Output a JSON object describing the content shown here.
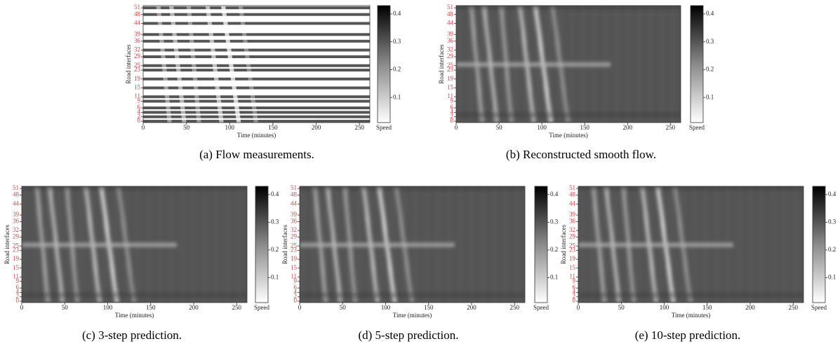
{
  "chart_data": [
    {
      "type": "heatmap",
      "variant": "measurements",
      "caption": "(a) Flow measurements.",
      "xlabel": "Time (minutes)",
      "ylabel": "Road interfaces",
      "xlim": [
        0,
        262
      ],
      "xticks": [
        0,
        50,
        100,
        150,
        200,
        250
      ],
      "ylim": [
        -0.6,
        52
      ],
      "yticks": [
        0,
        2,
        4,
        6,
        9,
        11,
        15,
        19,
        23,
        25,
        29,
        32,
        36,
        39,
        44,
        48,
        51
      ],
      "ytick_color": "#d04848",
      "colorbar": {
        "label": "Speed",
        "lim": [
          0.01,
          0.43
        ],
        "ticks": [
          0.1,
          0.2,
          0.3,
          0.4
        ]
      }
    },
    {
      "type": "heatmap",
      "variant": "smooth",
      "caption": "(b) Reconstructed smooth flow.",
      "xlabel": "Time (minutes)",
      "ylabel": "Road interfaces",
      "xlim": [
        0,
        262
      ],
      "xticks": [
        0,
        50,
        100,
        150,
        200,
        250
      ],
      "ylim": [
        -0.6,
        52
      ],
      "yticks": [
        0,
        2,
        4,
        6,
        9,
        11,
        15,
        19,
        23,
        25,
        29,
        32,
        36,
        39,
        44,
        48,
        51
      ],
      "ytick_color": "#d04848",
      "colorbar": {
        "label": "Speed",
        "lim": [
          0.01,
          0.43
        ],
        "ticks": [
          0.1,
          0.2,
          0.3,
          0.4
        ]
      }
    },
    {
      "type": "heatmap",
      "variant": "smooth",
      "caption": "(c) 3-step prediction.",
      "xlabel": "Time (minutes)",
      "ylabel": "Road interfaces",
      "xlim": [
        0,
        262
      ],
      "xticks": [
        0,
        50,
        100,
        150,
        200,
        250
      ],
      "ylim": [
        -0.6,
        52
      ],
      "yticks": [
        0,
        2,
        4,
        6,
        9,
        11,
        15,
        19,
        23,
        25,
        29,
        32,
        36,
        39,
        44,
        48,
        51
      ],
      "ytick_color": "#d04848",
      "colorbar": {
        "label": "Speed",
        "lim": [
          0.01,
          0.43
        ],
        "ticks": [
          0.1,
          0.2,
          0.3,
          0.4
        ]
      }
    },
    {
      "type": "heatmap",
      "variant": "smooth",
      "caption": "(d) 5-step prediction.",
      "xlabel": "Time (minutes)",
      "ylabel": "Road interfaces",
      "xlim": [
        0,
        262
      ],
      "xticks": [
        0,
        50,
        100,
        150,
        200,
        250
      ],
      "ylim": [
        -0.6,
        52
      ],
      "yticks": [
        0,
        2,
        4,
        6,
        9,
        11,
        15,
        19,
        23,
        25,
        29,
        32,
        36,
        39,
        44,
        48,
        51
      ],
      "ytick_color": "#d04848",
      "colorbar": {
        "label": "Speed",
        "lim": [
          0.01,
          0.43
        ],
        "ticks": [
          0.1,
          0.2,
          0.3,
          0.4
        ]
      }
    },
    {
      "type": "heatmap",
      "variant": "smooth",
      "caption": "(e) 10-step prediction.",
      "xlabel": "Time (minutes)",
      "ylabel": "Road interfaces",
      "xlim": [
        0,
        262
      ],
      "xticks": [
        0,
        50,
        100,
        150,
        200,
        250
      ],
      "ylim": [
        -0.6,
        52
      ],
      "yticks": [
        0,
        2,
        4,
        6,
        9,
        11,
        15,
        19,
        23,
        25,
        29,
        32,
        36,
        39,
        44,
        48,
        51
      ],
      "ytick_color": "#d04848",
      "colorbar": {
        "label": "Speed",
        "lim": [
          0.01,
          0.43
        ],
        "ticks": [
          0.1,
          0.2,
          0.3,
          0.4
        ]
      }
    }
  ]
}
